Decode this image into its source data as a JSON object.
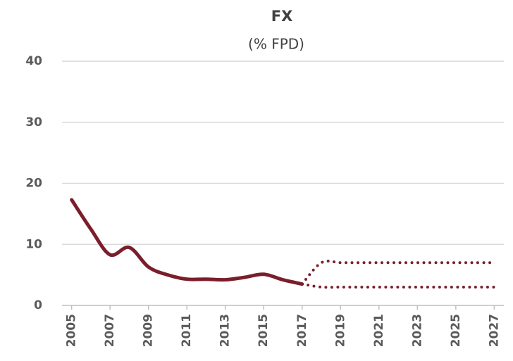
{
  "chart_data": {
    "type": "line",
    "title": "FX",
    "subtitle": "(% FPD)",
    "x": [
      2005,
      2006,
      2007,
      2008,
      2009,
      2010,
      2011,
      2012,
      2013,
      2014,
      2015,
      2016,
      2017,
      2018,
      2019,
      2020,
      2021,
      2022,
      2023,
      2024,
      2025,
      2026,
      2027
    ],
    "series": [
      {
        "color": "#7b1e2b",
        "style": "solid",
        "values": [
          17.3,
          12.5,
          8.3,
          9.5,
          6.3,
          5.0,
          4.3,
          4.3,
          4.2,
          4.6,
          5.1,
          4.2,
          3.5,
          null,
          null,
          null,
          null,
          null,
          null,
          null,
          null,
          null,
          null
        ]
      },
      {
        "color": "#7b1e2b",
        "style": "dotted",
        "values": [
          null,
          null,
          null,
          null,
          null,
          null,
          null,
          null,
          null,
          null,
          null,
          null,
          3.5,
          7.0,
          7.0,
          7.0,
          7.0,
          7.0,
          7.0,
          7.0,
          7.0,
          7.0,
          7.0
        ]
      },
      {
        "color": "#7b1e2b",
        "style": "dotted",
        "values": [
          null,
          null,
          null,
          null,
          null,
          null,
          null,
          null,
          null,
          null,
          null,
          null,
          3.5,
          3.0,
          3.0,
          3.0,
          3.0,
          3.0,
          3.0,
          3.0,
          3.0,
          3.0,
          3.0
        ]
      }
    ],
    "xlim": [
      2004.5,
      2027.5
    ],
    "xticks": [
      2005,
      2007,
      2009,
      2011,
      2013,
      2015,
      2017,
      2019,
      2021,
      2023,
      2025,
      2027
    ],
    "ylim": [
      0,
      40
    ],
    "yticks": [
      0,
      10,
      20,
      30,
      40
    ],
    "grid": true
  }
}
